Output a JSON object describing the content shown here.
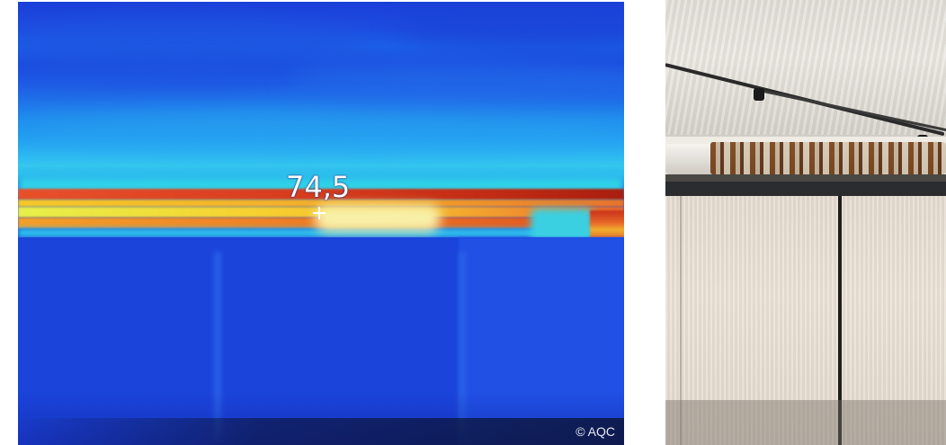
{
  "thermal_image": {
    "temperature_reading": "74,5",
    "credit": "© AQC"
  },
  "photo": {}
}
